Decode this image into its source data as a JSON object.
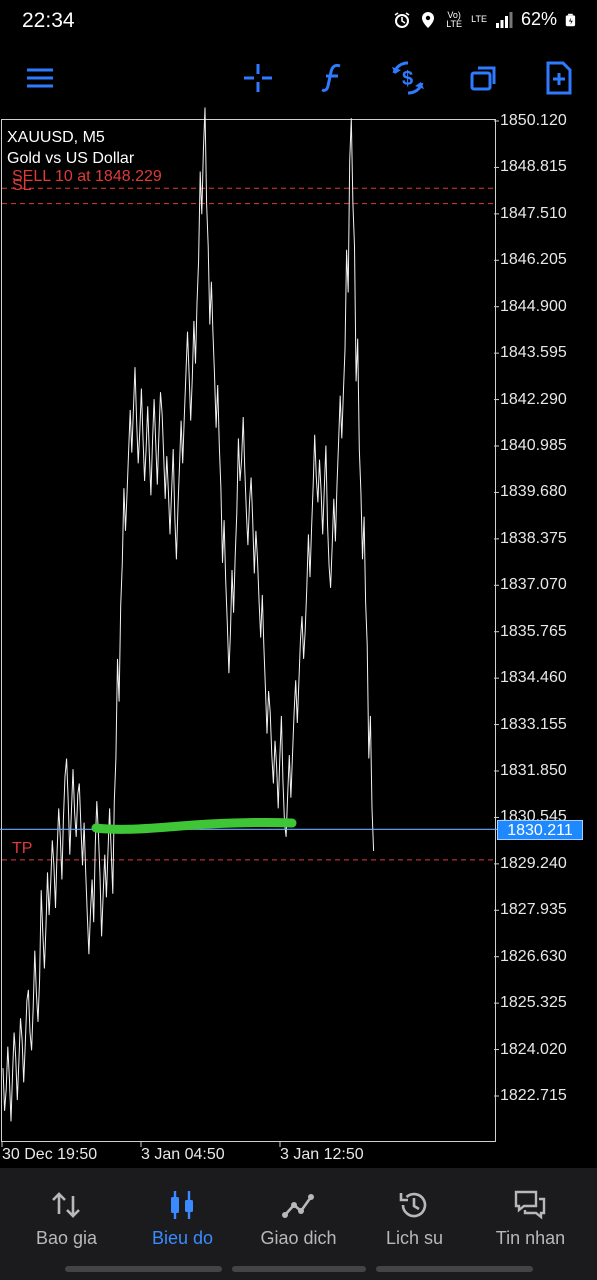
{
  "status": {
    "time": "22:34",
    "battery": "62%",
    "net1": "Vo) LTE",
    "net2": "LTE"
  },
  "toolbar": [
    "menu-icon",
    "crosshair-icon",
    "indicators-icon",
    "trade-icon",
    "windows-icon",
    "new-order-icon"
  ],
  "chart": {
    "symbol": "XAUUSD, M5",
    "description": "Gold vs US Dollar",
    "sell_label": "SELL 10 at 1848.229",
    "sl_label": "SL",
    "tp_label": "TP",
    "current_price": "1830.211",
    "y_ticks": [
      "1850.120",
      "1848.815",
      "1847.510",
      "1846.205",
      "1844.900",
      "1843.595",
      "1842.290",
      "1840.985",
      "1839.680",
      "1838.375",
      "1837.070",
      "1835.765",
      "1834.460",
      "1833.155",
      "1831.850",
      "1830.545",
      "1829.240",
      "1827.935",
      "1826.630",
      "1825.325",
      "1824.020",
      "1822.715"
    ],
    "x_ticks": [
      "30 Dec 19:50",
      "3 Jan 04:50",
      "3 Jan 12:50"
    ]
  },
  "chart_data": {
    "type": "line",
    "ylim": [
      1821.5,
      1850.4
    ],
    "series": [
      {
        "values": [
          1822.9,
          1823.5,
          1822.6,
          1823.9,
          1823.2,
          1824.3,
          1823.7,
          1824.8,
          1825.1,
          1824.6,
          1826.2,
          1825.4,
          1827.9,
          1826.9,
          1828.4,
          1829.3,
          1828.6,
          1830.2,
          1829.4,
          1831.1,
          1831.6,
          1830.1,
          1831.3,
          1830.6,
          1830.9,
          1829.8,
          1828.4,
          1827.3,
          1828.2,
          1830.4,
          1829.5,
          1827.8,
          1828.9,
          1830.2,
          1829.0,
          1831.6,
          1834.4,
          1837.1,
          1839.2,
          1840.3,
          1841.4,
          1842.6,
          1841.1,
          1842.0,
          1840.6,
          1841.5,
          1840.2,
          1841.7,
          1840.5,
          1841.9,
          1841.3,
          1840.1,
          1839.1,
          1840.3,
          1838.4,
          1839.9,
          1841.1,
          1842.4,
          1843.6,
          1842.3,
          1843.9,
          1845.6,
          1848.1,
          1849.9,
          1847.2,
          1845.0,
          1843.6,
          1842.1,
          1840.4,
          1838.3,
          1836.6,
          1835.2,
          1836.9,
          1838.5,
          1840.6,
          1841.2,
          1839.7,
          1838.8,
          1839.5,
          1838.0,
          1837.2,
          1836.2,
          1834.8,
          1833.5,
          1832.9,
          1832.1,
          1831.4,
          1832.8,
          1831.0,
          1830.6,
          1831.7,
          1832.9,
          1833.8,
          1834.9,
          1835.6,
          1836.4,
          1837.9,
          1839.3,
          1840.7,
          1840.0,
          1839.1,
          1840.4,
          1838.2,
          1837.6,
          1838.9,
          1840.5,
          1841.8,
          1843.1,
          1845.9,
          1849.6,
          1847.2,
          1843.4,
          1840.3,
          1838.4,
          1836.0,
          1832.8,
          1830.2
        ]
      }
    ],
    "sell_price": 1848.229,
    "sl_price": 1848.05,
    "tp_price": 1829.24,
    "current_price": 1830.211,
    "grid": false
  },
  "nav": [
    {
      "label": "Bao gia",
      "icon": "quotes-icon",
      "active": false
    },
    {
      "label": "Bieu do",
      "icon": "chart-candles-icon",
      "active": true
    },
    {
      "label": "Giao dich",
      "icon": "trade-line-icon",
      "active": false
    },
    {
      "label": "Lich su",
      "icon": "history-icon",
      "active": false
    },
    {
      "label": "Tin nhan",
      "icon": "messages-icon",
      "active": false
    }
  ]
}
